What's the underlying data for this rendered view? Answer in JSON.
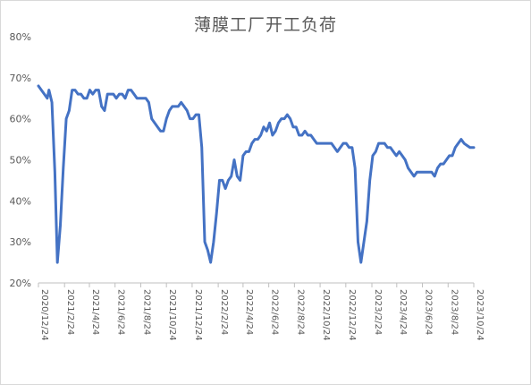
{
  "chart_data": {
    "type": "line",
    "title": "薄膜工厂开工负荷",
    "xlabel": "",
    "ylabel": "",
    "ylim": [
      0.2,
      0.8
    ],
    "yticks": [
      "20%",
      "30%",
      "40%",
      "50%",
      "60%",
      "70%",
      "80%"
    ],
    "y_tick_values": [
      0.2,
      0.3,
      0.4,
      0.5,
      0.6,
      0.7,
      0.8
    ],
    "x_tick_labels": [
      "2020/12/24",
      "2021/2/24",
      "2021/4/24",
      "2021/6/24",
      "2021/8/24",
      "2021/10/24",
      "2021/12/24",
      "2022/2/24",
      "2022/4/24",
      "2022/6/24",
      "2022/8/24",
      "2022/10/24",
      "2022/12/24",
      "2023/2/24",
      "2023/4/24",
      "2023/6/24",
      "2023/8/24",
      "2023/10/24"
    ],
    "grid": false,
    "legend": "none",
    "color": "#4472c4",
    "series": [
      {
        "points": [
          [
            "2020-12-24",
            0.68
          ],
          [
            "2020-12-31",
            0.67
          ],
          [
            "2021-01-07",
            0.66
          ],
          [
            "2021-01-14",
            0.65
          ],
          [
            "2021-01-18",
            0.67
          ],
          [
            "2021-01-25",
            0.64
          ],
          [
            "2021-02-01",
            0.47
          ],
          [
            "2021-02-07",
            0.25
          ],
          [
            "2021-02-14",
            0.34
          ],
          [
            "2021-02-21",
            0.48
          ],
          [
            "2021-02-28",
            0.6
          ],
          [
            "2021-03-07",
            0.62
          ],
          [
            "2021-03-14",
            0.67
          ],
          [
            "2021-03-21",
            0.67
          ],
          [
            "2021-03-28",
            0.66
          ],
          [
            "2021-04-04",
            0.66
          ],
          [
            "2021-04-11",
            0.65
          ],
          [
            "2021-04-18",
            0.65
          ],
          [
            "2021-04-25",
            0.67
          ],
          [
            "2021-05-02",
            0.66
          ],
          [
            "2021-05-09",
            0.67
          ],
          [
            "2021-05-16",
            0.67
          ],
          [
            "2021-05-23",
            0.63
          ],
          [
            "2021-05-30",
            0.62
          ],
          [
            "2021-06-06",
            0.66
          ],
          [
            "2021-06-13",
            0.66
          ],
          [
            "2021-06-20",
            0.66
          ],
          [
            "2021-06-27",
            0.65
          ],
          [
            "2021-07-04",
            0.66
          ],
          [
            "2021-07-11",
            0.66
          ],
          [
            "2021-07-18",
            0.65
          ],
          [
            "2021-07-25",
            0.67
          ],
          [
            "2021-08-01",
            0.67
          ],
          [
            "2021-08-08",
            0.66
          ],
          [
            "2021-08-15",
            0.65
          ],
          [
            "2021-08-22",
            0.65
          ],
          [
            "2021-08-29",
            0.65
          ],
          [
            "2021-09-05",
            0.65
          ],
          [
            "2021-09-12",
            0.64
          ],
          [
            "2021-09-19",
            0.6
          ],
          [
            "2021-09-26",
            0.59
          ],
          [
            "2021-10-03",
            0.58
          ],
          [
            "2021-10-10",
            0.57
          ],
          [
            "2021-10-17",
            0.57
          ],
          [
            "2021-10-24",
            0.6
          ],
          [
            "2021-10-31",
            0.62
          ],
          [
            "2021-11-07",
            0.63
          ],
          [
            "2021-11-14",
            0.63
          ],
          [
            "2021-11-21",
            0.63
          ],
          [
            "2021-11-28",
            0.64
          ],
          [
            "2021-12-05",
            0.63
          ],
          [
            "2021-12-12",
            0.62
          ],
          [
            "2021-12-19",
            0.6
          ],
          [
            "2021-12-26",
            0.6
          ],
          [
            "2022-01-02",
            0.61
          ],
          [
            "2022-01-09",
            0.61
          ],
          [
            "2022-01-16",
            0.53
          ],
          [
            "2022-01-23",
            0.3
          ],
          [
            "2022-01-30",
            0.28
          ],
          [
            "2022-02-06",
            0.25
          ],
          [
            "2022-02-13",
            0.3
          ],
          [
            "2022-02-20",
            0.37
          ],
          [
            "2022-02-27",
            0.45
          ],
          [
            "2022-03-06",
            0.45
          ],
          [
            "2022-03-13",
            0.43
          ],
          [
            "2022-03-20",
            0.45
          ],
          [
            "2022-03-27",
            0.46
          ],
          [
            "2022-04-03",
            0.5
          ],
          [
            "2022-04-10",
            0.46
          ],
          [
            "2022-04-17",
            0.45
          ],
          [
            "2022-04-24",
            0.51
          ],
          [
            "2022-05-01",
            0.52
          ],
          [
            "2022-05-08",
            0.52
          ],
          [
            "2022-05-15",
            0.54
          ],
          [
            "2022-05-22",
            0.55
          ],
          [
            "2022-05-29",
            0.55
          ],
          [
            "2022-06-05",
            0.56
          ],
          [
            "2022-06-12",
            0.58
          ],
          [
            "2022-06-19",
            0.57
          ],
          [
            "2022-06-26",
            0.59
          ],
          [
            "2022-07-03",
            0.56
          ],
          [
            "2022-07-10",
            0.57
          ],
          [
            "2022-07-17",
            0.59
          ],
          [
            "2022-07-24",
            0.6
          ],
          [
            "2022-07-31",
            0.6
          ],
          [
            "2022-08-07",
            0.61
          ],
          [
            "2022-08-14",
            0.6
          ],
          [
            "2022-08-21",
            0.58
          ],
          [
            "2022-08-28",
            0.58
          ],
          [
            "2022-09-04",
            0.56
          ],
          [
            "2022-09-11",
            0.56
          ],
          [
            "2022-09-18",
            0.57
          ],
          [
            "2022-09-25",
            0.56
          ],
          [
            "2022-10-02",
            0.56
          ],
          [
            "2022-10-09",
            0.55
          ],
          [
            "2022-10-16",
            0.54
          ],
          [
            "2022-10-23",
            0.54
          ],
          [
            "2022-10-30",
            0.54
          ],
          [
            "2022-11-06",
            0.54
          ],
          [
            "2022-11-13",
            0.54
          ],
          [
            "2022-11-20",
            0.54
          ],
          [
            "2022-11-27",
            0.53
          ],
          [
            "2022-12-04",
            0.52
          ],
          [
            "2022-12-11",
            0.53
          ],
          [
            "2022-12-18",
            0.54
          ],
          [
            "2022-12-25",
            0.54
          ],
          [
            "2023-01-01",
            0.53
          ],
          [
            "2023-01-08",
            0.53
          ],
          [
            "2023-01-15",
            0.48
          ],
          [
            "2023-01-22",
            0.3
          ],
          [
            "2023-01-29",
            0.25
          ],
          [
            "2023-02-05",
            0.3
          ],
          [
            "2023-02-12",
            0.35
          ],
          [
            "2023-02-19",
            0.45
          ],
          [
            "2023-02-26",
            0.51
          ],
          [
            "2023-03-05",
            0.52
          ],
          [
            "2023-03-12",
            0.54
          ],
          [
            "2023-03-19",
            0.54
          ],
          [
            "2023-03-26",
            0.54
          ],
          [
            "2023-04-02",
            0.53
          ],
          [
            "2023-04-09",
            0.53
          ],
          [
            "2023-04-16",
            0.52
          ],
          [
            "2023-04-23",
            0.51
          ],
          [
            "2023-04-30",
            0.52
          ],
          [
            "2023-05-07",
            0.51
          ],
          [
            "2023-05-14",
            0.5
          ],
          [
            "2023-05-21",
            0.48
          ],
          [
            "2023-05-28",
            0.47
          ],
          [
            "2023-06-04",
            0.46
          ],
          [
            "2023-06-11",
            0.47
          ],
          [
            "2023-06-18",
            0.47
          ],
          [
            "2023-06-25",
            0.47
          ],
          [
            "2023-07-02",
            0.47
          ],
          [
            "2023-07-09",
            0.47
          ],
          [
            "2023-07-16",
            0.47
          ],
          [
            "2023-07-23",
            0.46
          ],
          [
            "2023-07-30",
            0.48
          ],
          [
            "2023-08-06",
            0.49
          ],
          [
            "2023-08-13",
            0.49
          ],
          [
            "2023-08-20",
            0.5
          ],
          [
            "2023-08-27",
            0.51
          ],
          [
            "2023-09-03",
            0.51
          ],
          [
            "2023-09-10",
            0.53
          ],
          [
            "2023-09-17",
            0.54
          ],
          [
            "2023-09-24",
            0.55
          ],
          [
            "2023-10-01",
            0.54
          ],
          [
            "2023-10-08",
            0.535
          ],
          [
            "2023-10-15",
            0.53
          ],
          [
            "2023-10-22",
            0.53
          ],
          [
            "2023-10-24",
            0.53
          ]
        ]
      }
    ]
  }
}
